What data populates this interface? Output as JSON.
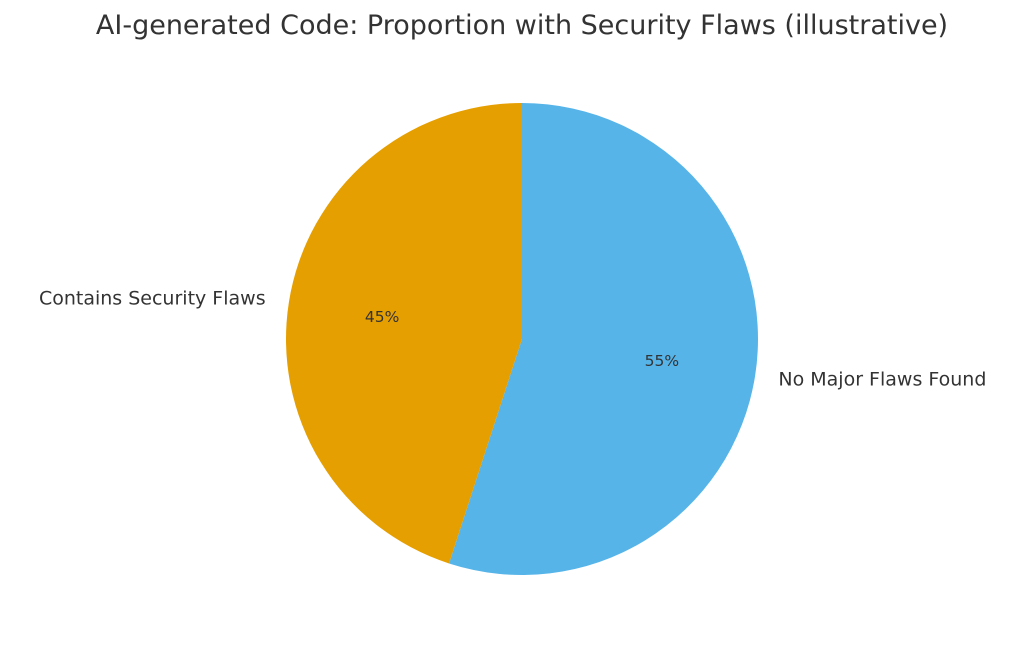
{
  "chart_data": {
    "type": "pie",
    "title": "AI-generated Code: Proportion with Security Flaws (illustrative)",
    "slices": [
      {
        "label": "No Major Flaws Found",
        "value": 55,
        "display": "55%",
        "color": "#56B4E9"
      },
      {
        "label": "Contains Security Flaws",
        "value": 45,
        "display": "45%",
        "color": "#E69F00"
      }
    ],
    "start_angle_deg": 90,
    "direction": "clockwise",
    "legend": "none"
  }
}
